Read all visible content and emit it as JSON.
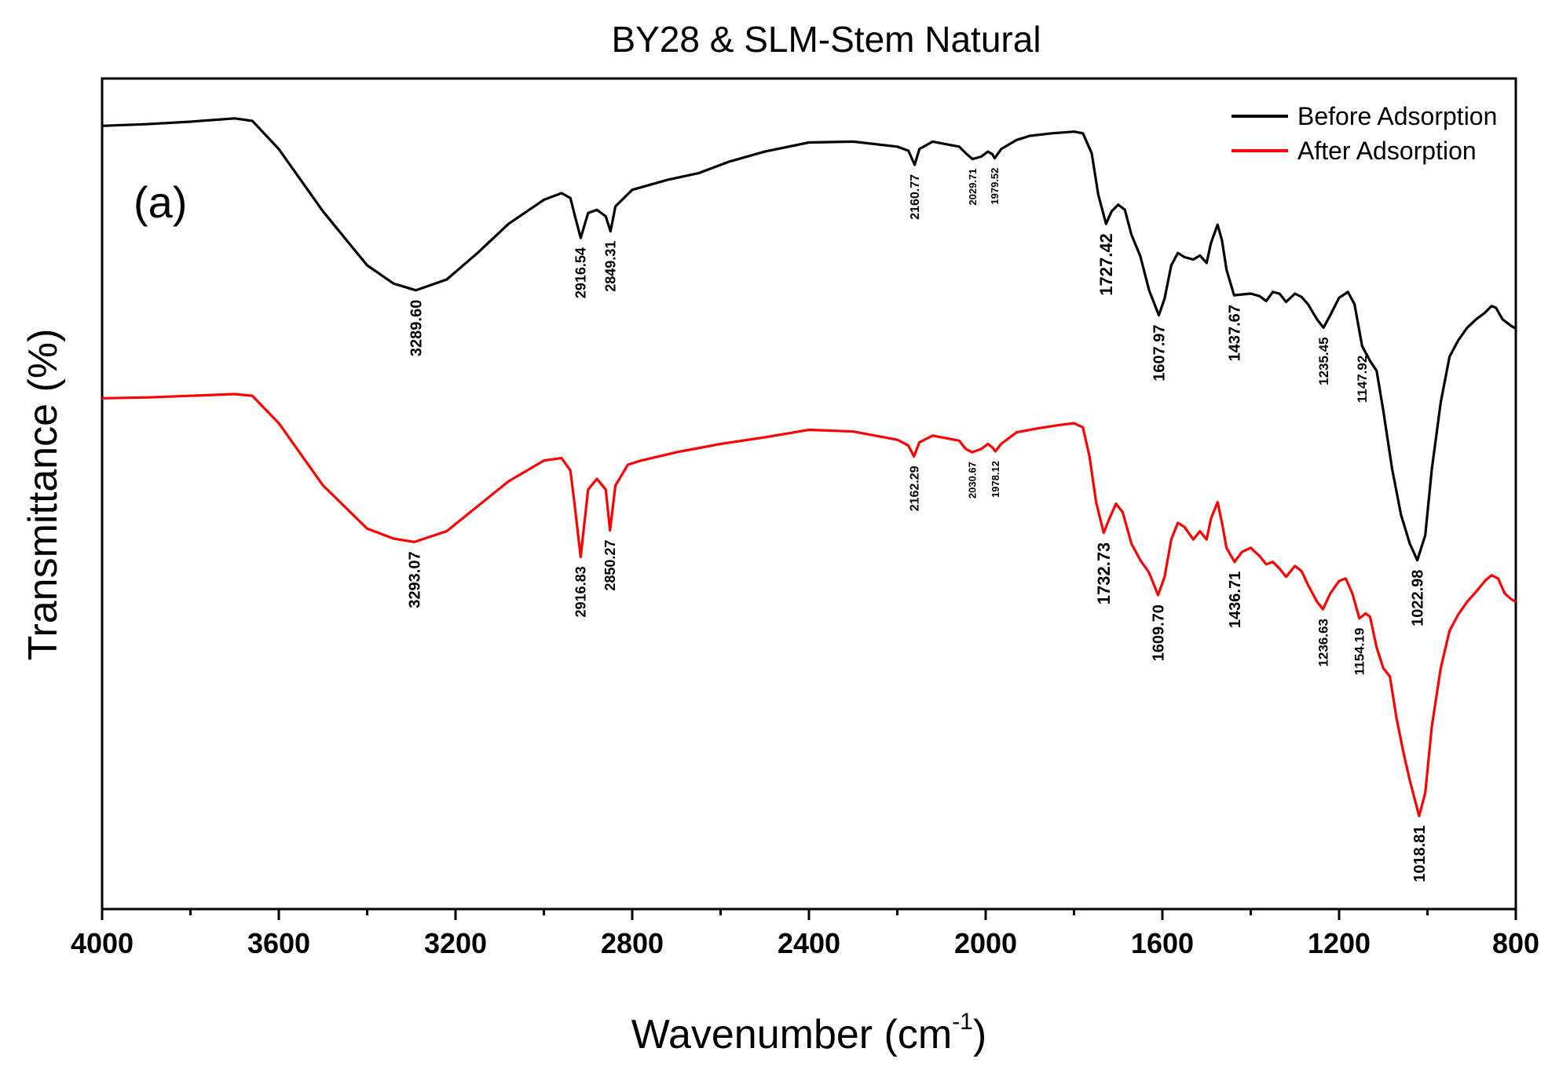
{
  "chart_data": {
    "type": "line",
    "title": "BY28 & SLM-Stem Natural",
    "panel_label": "(a)",
    "xlabel": "Wavenumber (cm",
    "xlabel_sup": "-1",
    "xlabel_close": ")",
    "ylabel": "Transmittance (%)",
    "xlim": [
      4000,
      800
    ],
    "ylim": [
      0,
      100
    ],
    "x_ticks": [
      {
        "value": 4000,
        "label": "4000"
      },
      {
        "value": 3600,
        "label": "3600"
      },
      {
        "value": 3200,
        "label": "3200"
      },
      {
        "value": 2800,
        "label": "2800"
      },
      {
        "value": 2400,
        "label": "2400"
      },
      {
        "value": 2000,
        "label": "2000"
      },
      {
        "value": 1600,
        "label": "1600"
      },
      {
        "value": 1200,
        "label": "1200"
      },
      {
        "value": 800,
        "label": "800"
      }
    ],
    "y_ticks_labeled": false,
    "legend_position": "top-right",
    "series": [
      {
        "name": "Before Adsorption",
        "color": "#000000",
        "points": [
          [
            4000,
            94.3
          ],
          [
            3900,
            94.5
          ],
          [
            3800,
            94.8
          ],
          [
            3700,
            95.2
          ],
          [
            3660,
            94.9
          ],
          [
            3600,
            91.5
          ],
          [
            3500,
            84.0
          ],
          [
            3400,
            77.5
          ],
          [
            3340,
            75.3
          ],
          [
            3289.6,
            74.5
          ],
          [
            3220,
            75.8
          ],
          [
            3150,
            79.0
          ],
          [
            3080,
            82.5
          ],
          [
            3000,
            85.4
          ],
          [
            2960,
            86.2
          ],
          [
            2940,
            85.6
          ],
          [
            2930,
            83.5
          ],
          [
            2916.54,
            80.8
          ],
          [
            2900,
            83.8
          ],
          [
            2880,
            84.2
          ],
          [
            2860,
            83.4
          ],
          [
            2849.31,
            81.6
          ],
          [
            2838,
            84.6
          ],
          [
            2800,
            86.6
          ],
          [
            2720,
            87.8
          ],
          [
            2650,
            88.6
          ],
          [
            2580,
            90.0
          ],
          [
            2500,
            91.2
          ],
          [
            2400,
            92.3
          ],
          [
            2300,
            92.4
          ],
          [
            2200,
            91.8
          ],
          [
            2175,
            91.3
          ],
          [
            2160.77,
            89.6
          ],
          [
            2150,
            91.5
          ],
          [
            2120,
            92.4
          ],
          [
            2060,
            91.8
          ],
          [
            2045,
            91.0
          ],
          [
            2029.71,
            90.3
          ],
          [
            2010,
            90.6
          ],
          [
            1995,
            91.2
          ],
          [
            1985,
            90.9
          ],
          [
            1979.52,
            90.4
          ],
          [
            1965,
            91.5
          ],
          [
            1930,
            92.6
          ],
          [
            1900,
            93.1
          ],
          [
            1850,
            93.4
          ],
          [
            1800,
            93.6
          ],
          [
            1780,
            93.4
          ],
          [
            1760,
            91.0
          ],
          [
            1745,
            86.0
          ],
          [
            1727.42,
            82.5
          ],
          [
            1715,
            84.0
          ],
          [
            1700,
            84.8
          ],
          [
            1685,
            84.2
          ],
          [
            1670,
            81.2
          ],
          [
            1650,
            78.6
          ],
          [
            1630,
            74.5
          ],
          [
            1607.97,
            71.5
          ],
          [
            1595,
            73.5
          ],
          [
            1580,
            77.5
          ],
          [
            1565,
            79.0
          ],
          [
            1550,
            78.5
          ],
          [
            1530,
            78.2
          ],
          [
            1515,
            78.7
          ],
          [
            1500,
            77.8
          ],
          [
            1490,
            80.2
          ],
          [
            1475,
            82.4
          ],
          [
            1465,
            80.5
          ],
          [
            1455,
            77.0
          ],
          [
            1437.67,
            73.9
          ],
          [
            1420,
            74.0
          ],
          [
            1400,
            74.1
          ],
          [
            1380,
            73.8
          ],
          [
            1365,
            73.2
          ],
          [
            1350,
            74.3
          ],
          [
            1335,
            74.1
          ],
          [
            1320,
            73.1
          ],
          [
            1300,
            74.1
          ],
          [
            1285,
            73.7
          ],
          [
            1270,
            72.8
          ],
          [
            1250,
            71.0
          ],
          [
            1235.45,
            70.0
          ],
          [
            1220,
            71.5
          ],
          [
            1200,
            73.6
          ],
          [
            1180,
            74.3
          ],
          [
            1165,
            72.8
          ],
          [
            1147.92,
            67.8
          ],
          [
            1130,
            66.0
          ],
          [
            1115,
            64.8
          ],
          [
            1100,
            60.0
          ],
          [
            1080,
            53.0
          ],
          [
            1060,
            47.5
          ],
          [
            1040,
            44.0
          ],
          [
            1022.98,
            42.0
          ],
          [
            1005,
            45.0
          ],
          [
            990,
            53.0
          ],
          [
            970,
            61.0
          ],
          [
            950,
            66.5
          ],
          [
            930,
            68.5
          ],
          [
            910,
            70.0
          ],
          [
            890,
            71.0
          ],
          [
            870,
            71.8
          ],
          [
            855,
            72.6
          ],
          [
            845,
            72.4
          ],
          [
            830,
            71.0
          ],
          [
            810,
            70.2
          ],
          [
            800,
            69.9
          ]
        ]
      },
      {
        "name": "After Adsorption",
        "color": "#ff0000",
        "points": [
          [
            4000,
            61.5
          ],
          [
            3900,
            61.6
          ],
          [
            3800,
            61.8
          ],
          [
            3700,
            62.0
          ],
          [
            3660,
            61.8
          ],
          [
            3600,
            58.5
          ],
          [
            3500,
            51.0
          ],
          [
            3400,
            45.8
          ],
          [
            3340,
            44.6
          ],
          [
            3293.07,
            44.2
          ],
          [
            3220,
            45.5
          ],
          [
            3150,
            48.5
          ],
          [
            3080,
            51.5
          ],
          [
            3000,
            54.0
          ],
          [
            2960,
            54.3
          ],
          [
            2940,
            52.8
          ],
          [
            2930,
            48.5
          ],
          [
            2916.83,
            42.4
          ],
          [
            2900,
            50.5
          ],
          [
            2880,
            51.8
          ],
          [
            2860,
            50.5
          ],
          [
            2850.27,
            45.6
          ],
          [
            2838,
            51.0
          ],
          [
            2810,
            53.5
          ],
          [
            2780,
            54.0
          ],
          [
            2700,
            55.0
          ],
          [
            2600,
            56.0
          ],
          [
            2500,
            56.8
          ],
          [
            2400,
            57.7
          ],
          [
            2300,
            57.5
          ],
          [
            2200,
            56.5
          ],
          [
            2175,
            55.8
          ],
          [
            2162.29,
            54.5
          ],
          [
            2150,
            56.2
          ],
          [
            2120,
            57.0
          ],
          [
            2060,
            56.4
          ],
          [
            2045,
            55.4
          ],
          [
            2030.67,
            55.0
          ],
          [
            2010,
            55.4
          ],
          [
            1995,
            56.0
          ],
          [
            1985,
            55.6
          ],
          [
            1978.12,
            55.1
          ],
          [
            1965,
            56.0
          ],
          [
            1930,
            57.4
          ],
          [
            1880,
            57.9
          ],
          [
            1830,
            58.3
          ],
          [
            1800,
            58.5
          ],
          [
            1780,
            58.0
          ],
          [
            1765,
            54.5
          ],
          [
            1750,
            49.0
          ],
          [
            1732.73,
            45.3
          ],
          [
            1720,
            47.0
          ],
          [
            1705,
            48.8
          ],
          [
            1690,
            47.8
          ],
          [
            1670,
            44.0
          ],
          [
            1650,
            42.0
          ],
          [
            1630,
            40.5
          ],
          [
            1609.7,
            37.8
          ],
          [
            1595,
            40.0
          ],
          [
            1580,
            44.5
          ],
          [
            1565,
            46.5
          ],
          [
            1550,
            46.0
          ],
          [
            1530,
            44.5
          ],
          [
            1515,
            45.5
          ],
          [
            1500,
            44.5
          ],
          [
            1490,
            47.0
          ],
          [
            1475,
            49.0
          ],
          [
            1465,
            46.5
          ],
          [
            1455,
            43.5
          ],
          [
            1436.71,
            41.8
          ],
          [
            1420,
            43.0
          ],
          [
            1400,
            43.5
          ],
          [
            1380,
            42.5
          ],
          [
            1365,
            41.5
          ],
          [
            1350,
            41.8
          ],
          [
            1335,
            41.0
          ],
          [
            1320,
            40.0
          ],
          [
            1300,
            41.3
          ],
          [
            1285,
            40.7
          ],
          [
            1270,
            39.0
          ],
          [
            1250,
            37.0
          ],
          [
            1236.63,
            36.1
          ],
          [
            1220,
            38.0
          ],
          [
            1200,
            39.5
          ],
          [
            1185,
            39.8
          ],
          [
            1170,
            38.0
          ],
          [
            1154.19,
            35.0
          ],
          [
            1140,
            35.6
          ],
          [
            1130,
            35.2
          ],
          [
            1115,
            31.5
          ],
          [
            1100,
            29.0
          ],
          [
            1085,
            28.0
          ],
          [
            1070,
            23.0
          ],
          [
            1055,
            19.0
          ],
          [
            1040,
            15.5
          ],
          [
            1018.81,
            11.2
          ],
          [
            1005,
            14.0
          ],
          [
            990,
            22.0
          ],
          [
            970,
            29.0
          ],
          [
            950,
            33.5
          ],
          [
            930,
            35.5
          ],
          [
            910,
            37.0
          ],
          [
            890,
            38.2
          ],
          [
            870,
            39.5
          ],
          [
            855,
            40.2
          ],
          [
            840,
            39.8
          ],
          [
            825,
            38.0
          ],
          [
            810,
            37.3
          ],
          [
            800,
            37.0
          ]
        ]
      }
    ],
    "annotations": [
      {
        "series": 0,
        "x": 3289.6,
        "label": "3289.60",
        "size": 20
      },
      {
        "series": 0,
        "x": 2916.54,
        "label": "2916.54",
        "size": 18
      },
      {
        "series": 0,
        "x": 2849.31,
        "label": "2849.31",
        "size": 18
      },
      {
        "series": 0,
        "x": 2160.77,
        "label": "2160.77",
        "size": 16
      },
      {
        "series": 0,
        "x": 2029.71,
        "label": "2029.71",
        "size": 13
      },
      {
        "series": 0,
        "x": 1979.52,
        "label": "1979.52",
        "size": 13
      },
      {
        "series": 0,
        "x": 1727.42,
        "label": "1727.42",
        "size": 22
      },
      {
        "series": 0,
        "x": 1607.97,
        "label": "1607.97",
        "size": 20
      },
      {
        "series": 0,
        "x": 1437.67,
        "label": "1437.67",
        "size": 20
      },
      {
        "series": 0,
        "x": 1235.45,
        "label": "1235.45",
        "size": 17
      },
      {
        "series": 0,
        "x": 1147.92,
        "label": "1147.92",
        "size": 17
      },
      {
        "series": 0,
        "x": 1022.98,
        "label": "1022.98",
        "size": 20
      },
      {
        "series": 1,
        "x": 3293.07,
        "label": "3293.07",
        "size": 20
      },
      {
        "series": 1,
        "x": 2916.83,
        "label": "2916.83",
        "size": 18
      },
      {
        "series": 1,
        "x": 2850.27,
        "label": "2850.27",
        "size": 18
      },
      {
        "series": 1,
        "x": 2162.29,
        "label": "2162.29",
        "size": 16
      },
      {
        "series": 1,
        "x": 2030.67,
        "label": "2030.67",
        "size": 13
      },
      {
        "series": 1,
        "x": 1978.12,
        "label": "1978.12",
        "size": 13
      },
      {
        "series": 1,
        "x": 1732.73,
        "label": "1732.73",
        "size": 22
      },
      {
        "series": 1,
        "x": 1609.7,
        "label": "1609.70",
        "size": 20
      },
      {
        "series": 1,
        "x": 1436.71,
        "label": "1436.71",
        "size": 20
      },
      {
        "series": 1,
        "x": 1236.63,
        "label": "1236.63",
        "size": 17
      },
      {
        "series": 1,
        "x": 1154.19,
        "label": "1154.19",
        "size": 17
      },
      {
        "series": 1,
        "x": 1018.81,
        "label": "1018.81",
        "size": 20
      }
    ]
  }
}
